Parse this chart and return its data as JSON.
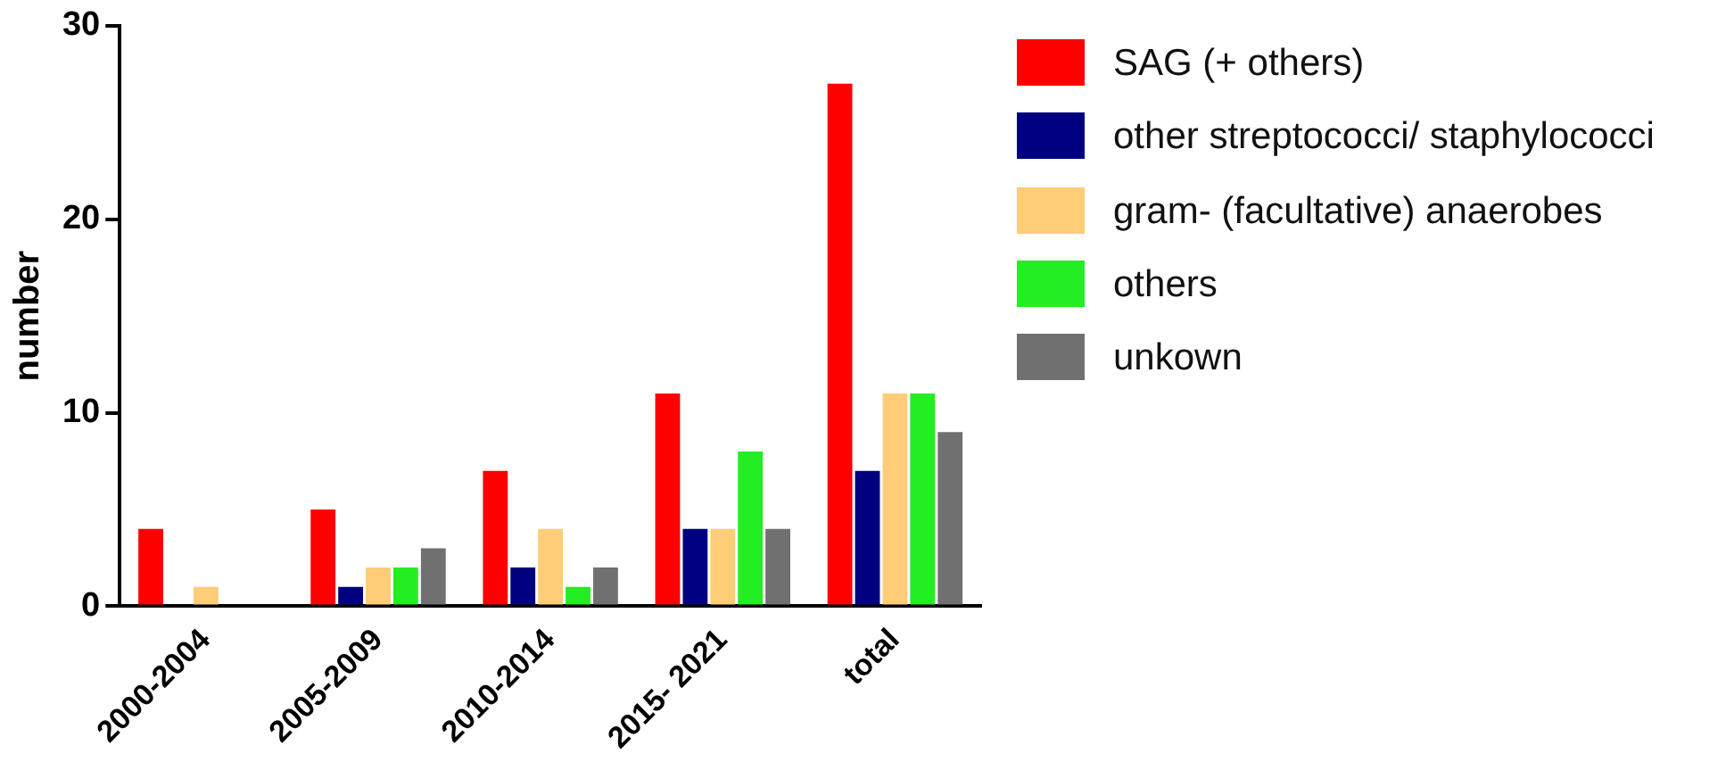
{
  "chart_data": {
    "type": "bar",
    "ylabel": "number",
    "categories": [
      "2000-2004",
      "2005-2009",
      "2010-2014",
      "2015- 2021",
      "total"
    ],
    "series": [
      {
        "name": "SAG (+ others)",
        "color": "#ff0000",
        "values": [
          4,
          5,
          7,
          11,
          27
        ]
      },
      {
        "name": "other streptococci/ staphylococci",
        "color": "#000080",
        "values": [
          0,
          1,
          2,
          4,
          7
        ]
      },
      {
        "name": "gram- (facultative) anaerobes",
        "color": "#ffcc77",
        "values": [
          1,
          2,
          4,
          4,
          11
        ]
      },
      {
        "name": "others",
        "color": "#22ee22",
        "values": [
          0,
          2,
          1,
          8,
          11
        ]
      },
      {
        "name": "unkown",
        "color": "#707070",
        "values": [
          0,
          3,
          2,
          4,
          9
        ]
      }
    ],
    "ylim": [
      0,
      30
    ],
    "yticks": [
      0,
      10,
      20,
      30
    ],
    "grid": false,
    "legend": "right"
  }
}
